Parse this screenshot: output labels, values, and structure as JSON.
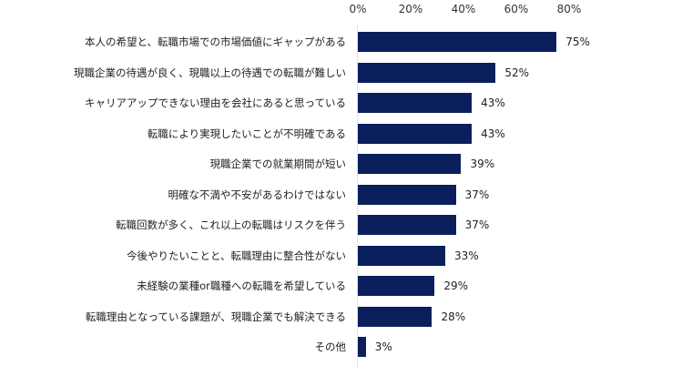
{
  "chart_data": {
    "type": "bar",
    "orientation": "horizontal",
    "title": "",
    "xlabel": "",
    "ylabel": "",
    "xlim": [
      0,
      80
    ],
    "x_ticks": [
      "0%",
      "20%",
      "40%",
      "60%",
      "80%"
    ],
    "grid": false,
    "legend": null,
    "bar_color": "#0b1f5c",
    "categories": [
      "本人の希望と、転職市場での市場価値にギャップがある",
      "現職企業の待遇が良く、現職以上の待遇での転職が難しい",
      "キャリアアップできない理由を会社にあると思っている",
      "転職により実現したいことが不明確である",
      "現職企業での就業期間が短い",
      "明確な不満や不安があるわけではない",
      "転職回数が多く、これ以上の転職はリスクを伴う",
      "今後やりたいことと、転職理由に整合性がない",
      "未経験の業種or職種への転職を希望している",
      "転職理由となっている課題が、現職企業でも解決できる",
      "その他"
    ],
    "values": [
      75,
      52,
      43,
      43,
      39,
      37,
      37,
      33,
      29,
      28,
      3
    ],
    "value_labels": [
      "75%",
      "52%",
      "43%",
      "43%",
      "39%",
      "37%",
      "37%",
      "33%",
      "29%",
      "28%",
      "3%"
    ]
  }
}
